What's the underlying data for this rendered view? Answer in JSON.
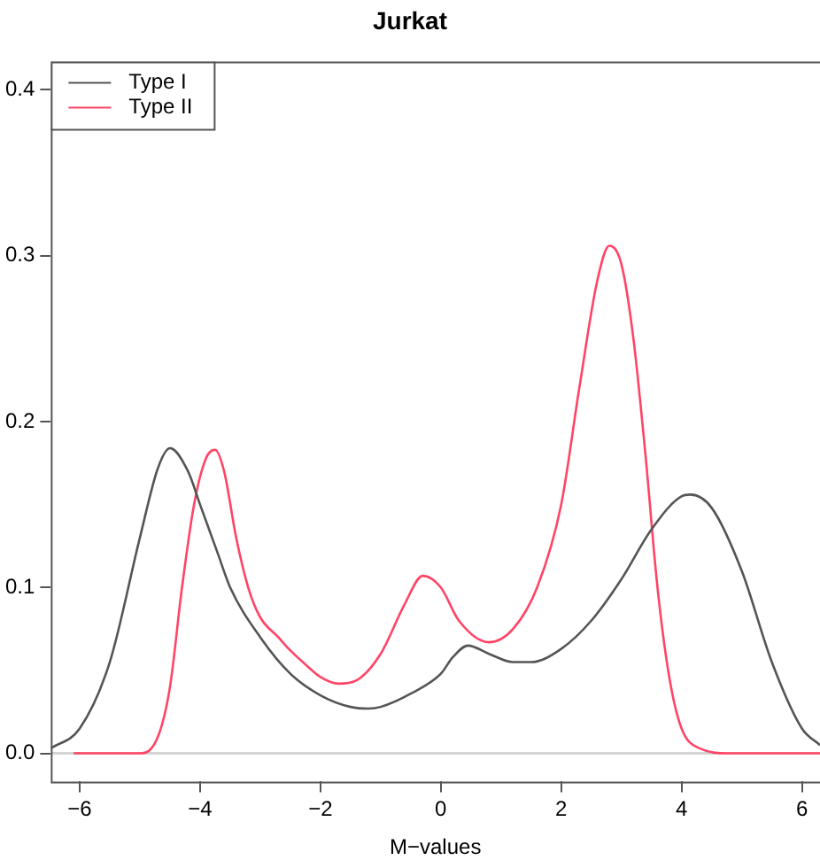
{
  "chart_data": {
    "type": "line",
    "title": "Jurkat",
    "xlabel": "M−values",
    "xlim": [
      -6.48,
      6.3
    ],
    "xticks": [
      {
        "value": -6,
        "label": "−6"
      },
      {
        "value": -4,
        "label": "−4"
      },
      {
        "value": -2,
        "label": "−2"
      },
      0,
      2,
      4,
      6
    ],
    "ylim": [
      -0.017,
      0.417
    ],
    "yticks": [
      {
        "value": 0,
        "label": "0.0"
      },
      0.1,
      0.2,
      0.3,
      0.4
    ],
    "grid": false,
    "legend": "top left",
    "marker": "none",
    "line_style": "solid",
    "ref_lines": [
      {
        "axis": "y",
        "value": 0,
        "color": "#d3d3d3"
      }
    ],
    "series": [
      {
        "name": "Type I",
        "color": "#555555",
        "x": [
          -6.48,
          -6,
          -5.5,
          -5,
          -4.7,
          -4.5,
          -4.2,
          -4,
          -3.7,
          -3.5,
          -3,
          -2.5,
          -2,
          -1.5,
          -1.2,
          -1,
          -0.5,
          0,
          0.2,
          0.45,
          0.8,
          1.2,
          1.5,
          2,
          2.5,
          3,
          3.5,
          4,
          4.15,
          4.5,
          5,
          5.5,
          6,
          6.3
        ],
        "values": [
          0.003,
          0.015,
          0.055,
          0.13,
          0.172,
          0.184,
          0.17,
          0.15,
          0.12,
          0.1,
          0.07,
          0.048,
          0.035,
          0.028,
          0.027,
          0.028,
          0.036,
          0.048,
          0.058,
          0.065,
          0.06,
          0.055,
          0.055,
          0.063,
          0.08,
          0.105,
          0.135,
          0.155,
          0.156,
          0.148,
          0.11,
          0.055,
          0.015,
          0.005
        ]
      },
      {
        "name": "Type II",
        "color": "#ff4466",
        "x": [
          -6.1,
          -5,
          -4.7,
          -4.5,
          -4.3,
          -4.1,
          -3.9,
          -3.75,
          -3.6,
          -3.4,
          -3.2,
          -3,
          -2.7,
          -2.5,
          -2.2,
          -2,
          -1.7,
          -1.4,
          -1,
          -0.6,
          -0.3,
          0,
          0.3,
          0.8,
          1.2,
          1.6,
          2,
          2.3,
          2.6,
          2.8,
          3,
          3.2,
          3.4,
          3.6,
          3.8,
          4,
          4.3,
          4.8,
          6.3
        ],
        "values": [
          0,
          0,
          0.01,
          0.04,
          0.1,
          0.15,
          0.178,
          0.183,
          0.17,
          0.13,
          0.1,
          0.082,
          0.07,
          0.062,
          0.052,
          0.046,
          0.042,
          0.044,
          0.06,
          0.09,
          0.107,
          0.1,
          0.08,
          0.067,
          0.075,
          0.1,
          0.15,
          0.22,
          0.285,
          0.306,
          0.295,
          0.25,
          0.18,
          0.1,
          0.045,
          0.015,
          0.003,
          0,
          0
        ]
      }
    ]
  }
}
